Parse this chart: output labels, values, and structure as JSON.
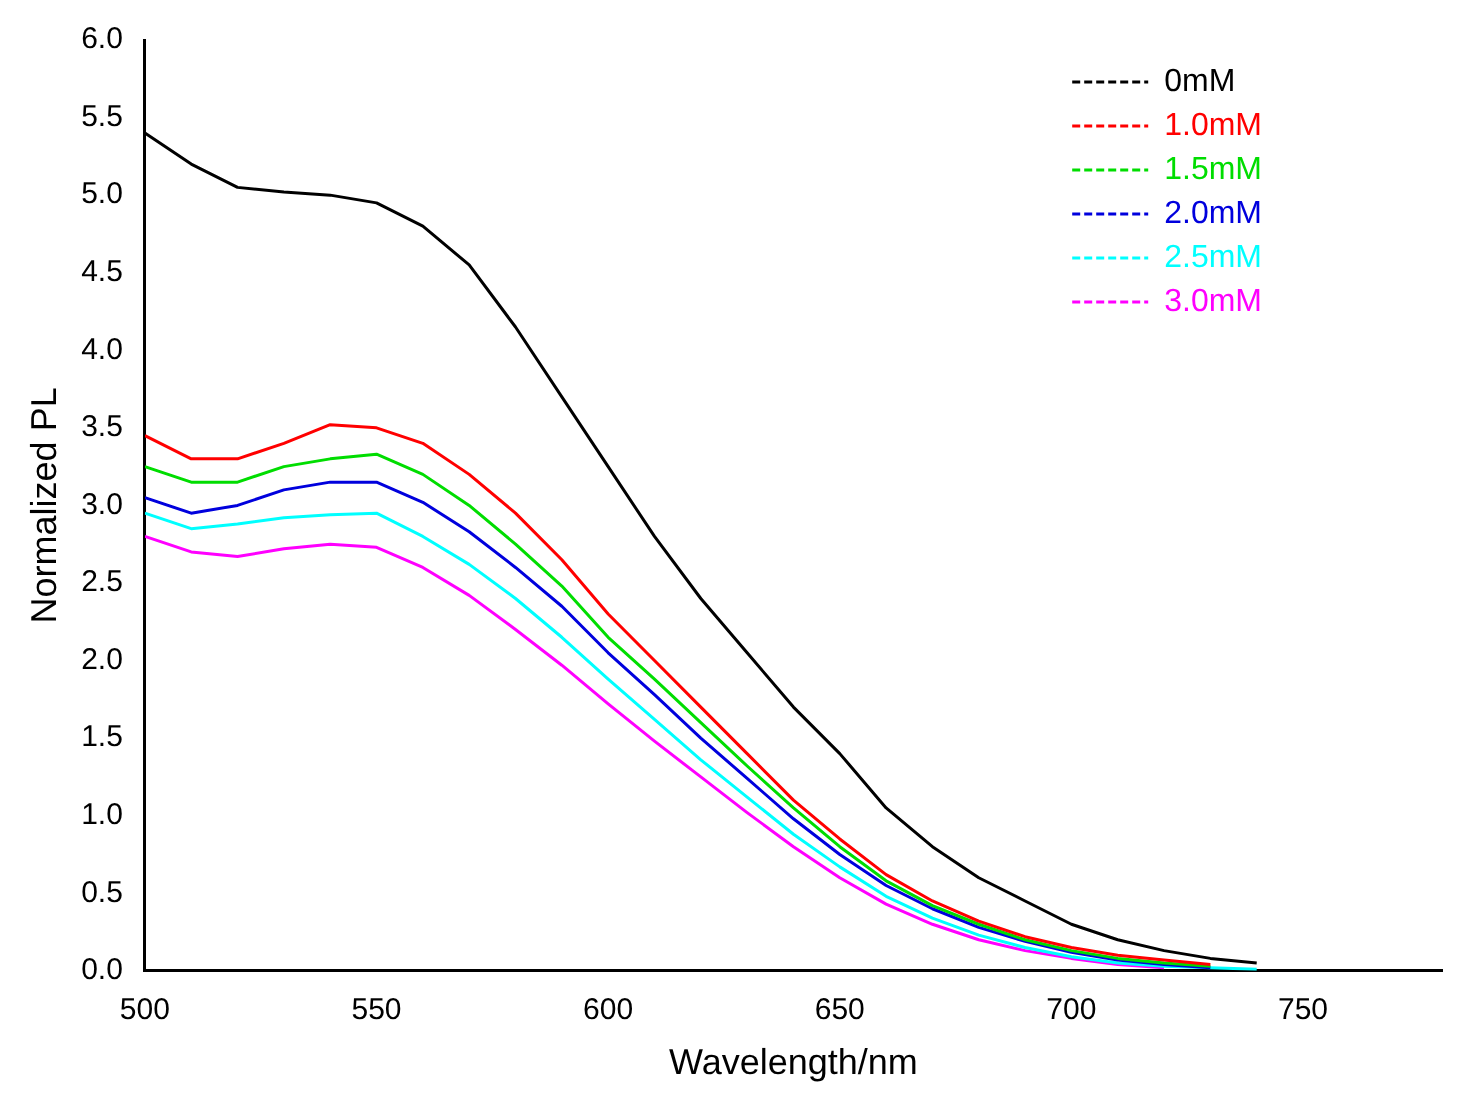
{
  "chart_data": {
    "type": "line",
    "xlabel": "Wavelength/nm",
    "ylabel": "Normalized PL",
    "x": [
      500,
      510,
      520,
      530,
      540,
      550,
      560,
      570,
      580,
      590,
      600,
      610,
      620,
      630,
      640,
      650,
      660,
      670,
      680,
      690,
      700,
      710,
      720,
      730,
      740
    ],
    "series": [
      {
        "name": "0mM",
        "color": "#000000",
        "values": [
          5.4,
          5.2,
          5.05,
          5.02,
          5.0,
          4.95,
          4.8,
          4.55,
          4.15,
          3.7,
          3.25,
          2.8,
          2.4,
          2.05,
          1.7,
          1.4,
          1.05,
          0.8,
          0.6,
          0.45,
          0.3,
          0.2,
          0.13,
          0.08,
          0.05
        ]
      },
      {
        "name": "1.0mM",
        "color": "#ff0000",
        "values": [
          3.45,
          3.3,
          3.3,
          3.4,
          3.52,
          3.5,
          3.4,
          3.2,
          2.95,
          2.65,
          2.3,
          2.0,
          1.7,
          1.4,
          1.1,
          0.85,
          0.62,
          0.45,
          0.32,
          0.22,
          0.15,
          0.1,
          0.07,
          0.04,
          null
        ]
      },
      {
        "name": "1.5mM",
        "color": "#00dd00",
        "values": [
          3.25,
          3.15,
          3.15,
          3.25,
          3.3,
          3.33,
          3.2,
          3.0,
          2.75,
          2.48,
          2.15,
          1.88,
          1.6,
          1.32,
          1.05,
          0.8,
          0.58,
          0.42,
          0.3,
          0.2,
          0.13,
          0.08,
          0.05,
          0.03,
          null
        ]
      },
      {
        "name": "2.0mM",
        "color": "#0000dd",
        "values": [
          3.05,
          2.95,
          3.0,
          3.1,
          3.15,
          3.15,
          3.02,
          2.83,
          2.6,
          2.35,
          2.05,
          1.78,
          1.5,
          1.24,
          0.98,
          0.75,
          0.55,
          0.4,
          0.28,
          0.19,
          0.12,
          0.07,
          0.04,
          0.02,
          null
        ]
      },
      {
        "name": "2.5mM",
        "color": "#00ffff",
        "values": [
          2.95,
          2.85,
          2.88,
          2.92,
          2.94,
          2.95,
          2.8,
          2.62,
          2.4,
          2.15,
          1.88,
          1.62,
          1.36,
          1.12,
          0.88,
          0.67,
          0.48,
          0.34,
          0.23,
          0.15,
          0.09,
          0.05,
          0.03,
          0.02,
          0.01
        ]
      },
      {
        "name": "3.0mM",
        "color": "#ff00ff",
        "values": [
          2.8,
          2.7,
          2.67,
          2.72,
          2.75,
          2.73,
          2.6,
          2.42,
          2.2,
          1.97,
          1.72,
          1.48,
          1.25,
          1.02,
          0.8,
          0.6,
          0.43,
          0.3,
          0.2,
          0.13,
          0.08,
          0.04,
          0.02,
          null,
          null
        ]
      }
    ],
    "xlim": [
      500,
      780
    ],
    "xticks": [
      500,
      550,
      600,
      650,
      700,
      750
    ],
    "ylim": [
      0,
      6
    ],
    "yticks": [
      {
        "value": 0,
        "label": "0.0"
      },
      0.5,
      {
        "value": 1,
        "label": "1.0"
      },
      1.5,
      {
        "value": 2,
        "label": "2.0"
      },
      2.5,
      {
        "value": 3,
        "label": "3.0"
      },
      3.5,
      {
        "value": 4,
        "label": "4.0"
      },
      4.5,
      {
        "value": 5,
        "label": "5.0"
      },
      5.5,
      {
        "value": 6,
        "label": "6.0"
      }
    ],
    "legend": "top right",
    "grid": false,
    "line_style": "solid",
    "marker": "none"
  }
}
